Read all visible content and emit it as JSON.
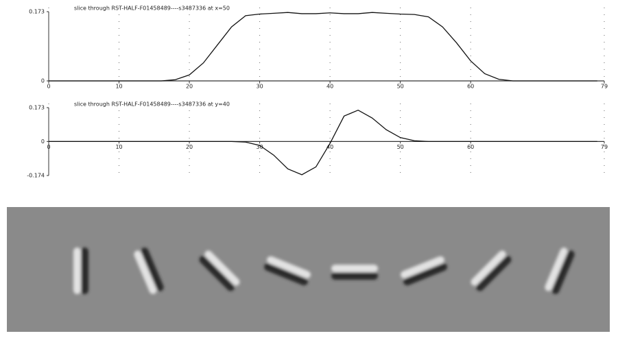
{
  "chart_data": [
    {
      "type": "line",
      "title": "slice through RST-HALF-F01458489----s3487336 at x=50",
      "x": [
        0,
        2,
        4,
        6,
        8,
        10,
        12,
        14,
        16,
        18,
        20,
        22,
        24,
        26,
        28,
        30,
        32,
        34,
        36,
        38,
        40,
        42,
        44,
        46,
        48,
        50,
        52,
        54,
        56,
        58,
        60,
        62,
        64,
        66,
        68,
        70,
        72,
        74,
        76,
        78
      ],
      "series": [
        {
          "color": "#111111",
          "values": [
            0,
            0,
            0,
            0,
            0,
            0,
            0,
            0,
            0,
            0.003,
            0.015,
            0.045,
            0.09,
            0.135,
            0.163,
            0.167,
            0.169,
            0.171,
            0.168,
            0.168,
            0.17,
            0.168,
            0.168,
            0.171,
            0.169,
            0.167,
            0.166,
            0.16,
            0.135,
            0.095,
            0.05,
            0.018,
            0.004,
            0,
            0,
            0,
            0,
            0,
            0,
            0
          ]
        }
      ],
      "xlim": [
        0,
        79
      ],
      "xticks": [
        0,
        10,
        20,
        30,
        40,
        50,
        60,
        79
      ],
      "ylim": [
        0,
        0.173
      ],
      "yticks": [
        0,
        0.173
      ],
      "grid": true
    },
    {
      "type": "line",
      "title": "slice through RST-HALF-F01458489----s3487336 at y=40",
      "x": [
        0,
        2,
        4,
        6,
        8,
        10,
        12,
        14,
        16,
        18,
        20,
        22,
        24,
        26,
        28,
        30,
        32,
        34,
        36,
        38,
        40,
        42,
        44,
        46,
        48,
        50,
        52,
        54,
        56,
        58,
        60,
        62,
        64,
        66,
        68,
        70,
        72,
        74,
        76,
        78
      ],
      "series": [
        {
          "color": "#111111",
          "values": [
            0,
            0,
            0,
            0,
            0,
            0,
            0,
            0,
            0,
            0,
            0,
            0,
            0,
            0,
            -0.003,
            -0.02,
            -0.07,
            -0.14,
            -0.17,
            -0.13,
            -0.01,
            0.13,
            0.16,
            0.12,
            0.06,
            0.02,
            0.004,
            0,
            0,
            0,
            0,
            0,
            0,
            0,
            0,
            0,
            0,
            0,
            0,
            0
          ]
        }
      ],
      "xlim": [
        0,
        79
      ],
      "xticks": [
        0,
        10,
        20,
        30,
        40,
        50,
        60,
        79
      ],
      "ylim": [
        -0.174,
        0.173
      ],
      "yticks": [
        -0.174,
        0,
        0.173
      ],
      "grid": true
    }
  ]
}
